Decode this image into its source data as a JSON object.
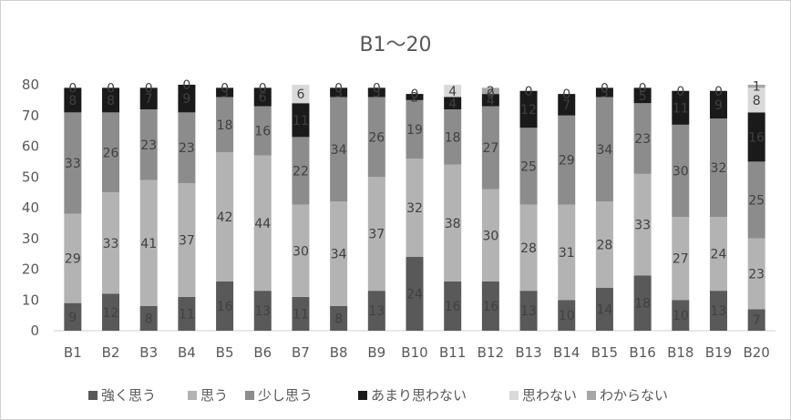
{
  "chart_data": {
    "type": "bar",
    "stacked": true,
    "title": "B1～20",
    "xlabel": "",
    "ylabel": "",
    "ylim": [
      0,
      80
    ],
    "yticks": [
      0,
      10,
      20,
      30,
      40,
      50,
      60,
      70,
      80
    ],
    "grid": false,
    "legend_position": "bottom",
    "categories": [
      "B1",
      "B2",
      "B3",
      "B4",
      "B5",
      "B6",
      "B7",
      "B8",
      "B9",
      "B10",
      "B11",
      "B12",
      "B13",
      "B14",
      "B15",
      "B16",
      "B18",
      "B19",
      "B20"
    ],
    "series": [
      {
        "name": "強く思う",
        "color": "#595959",
        "values": [
          9,
          12,
          8,
          11,
          16,
          13,
          11,
          8,
          13,
          24,
          16,
          16,
          13,
          10,
          14,
          18,
          10,
          13,
          7
        ]
      },
      {
        "name": "思う",
        "color": "#b3b3b3",
        "values": [
          29,
          33,
          41,
          37,
          42,
          44,
          30,
          34,
          37,
          32,
          38,
          30,
          28,
          31,
          28,
          33,
          27,
          24,
          23
        ]
      },
      {
        "name": "少し思う",
        "color": "#8c8c8c",
        "values": [
          33,
          26,
          23,
          23,
          18,
          16,
          22,
          34,
          26,
          19,
          18,
          27,
          25,
          29,
          34,
          23,
          30,
          32,
          25
        ]
      },
      {
        "name": "あまり思わない",
        "color": "#1a1a1a",
        "values": [
          8,
          8,
          7,
          9,
          3,
          6,
          11,
          3,
          3,
          2,
          4,
          4,
          12,
          7,
          3,
          5,
          11,
          9,
          16
        ]
      },
      {
        "name": "思わない",
        "color": "#d9d9d9",
        "values": [
          0,
          0,
          0,
          0,
          0,
          0,
          6,
          0,
          0,
          0,
          4,
          0,
          0,
          0,
          0,
          0,
          0,
          0,
          8
        ]
      },
      {
        "name": "わからない",
        "color": "#a6a6a6",
        "values": [
          0,
          0,
          0,
          0,
          0,
          0,
          0,
          0,
          0,
          0,
          0,
          2,
          0,
          0,
          0,
          0,
          0,
          0,
          1
        ]
      }
    ]
  }
}
